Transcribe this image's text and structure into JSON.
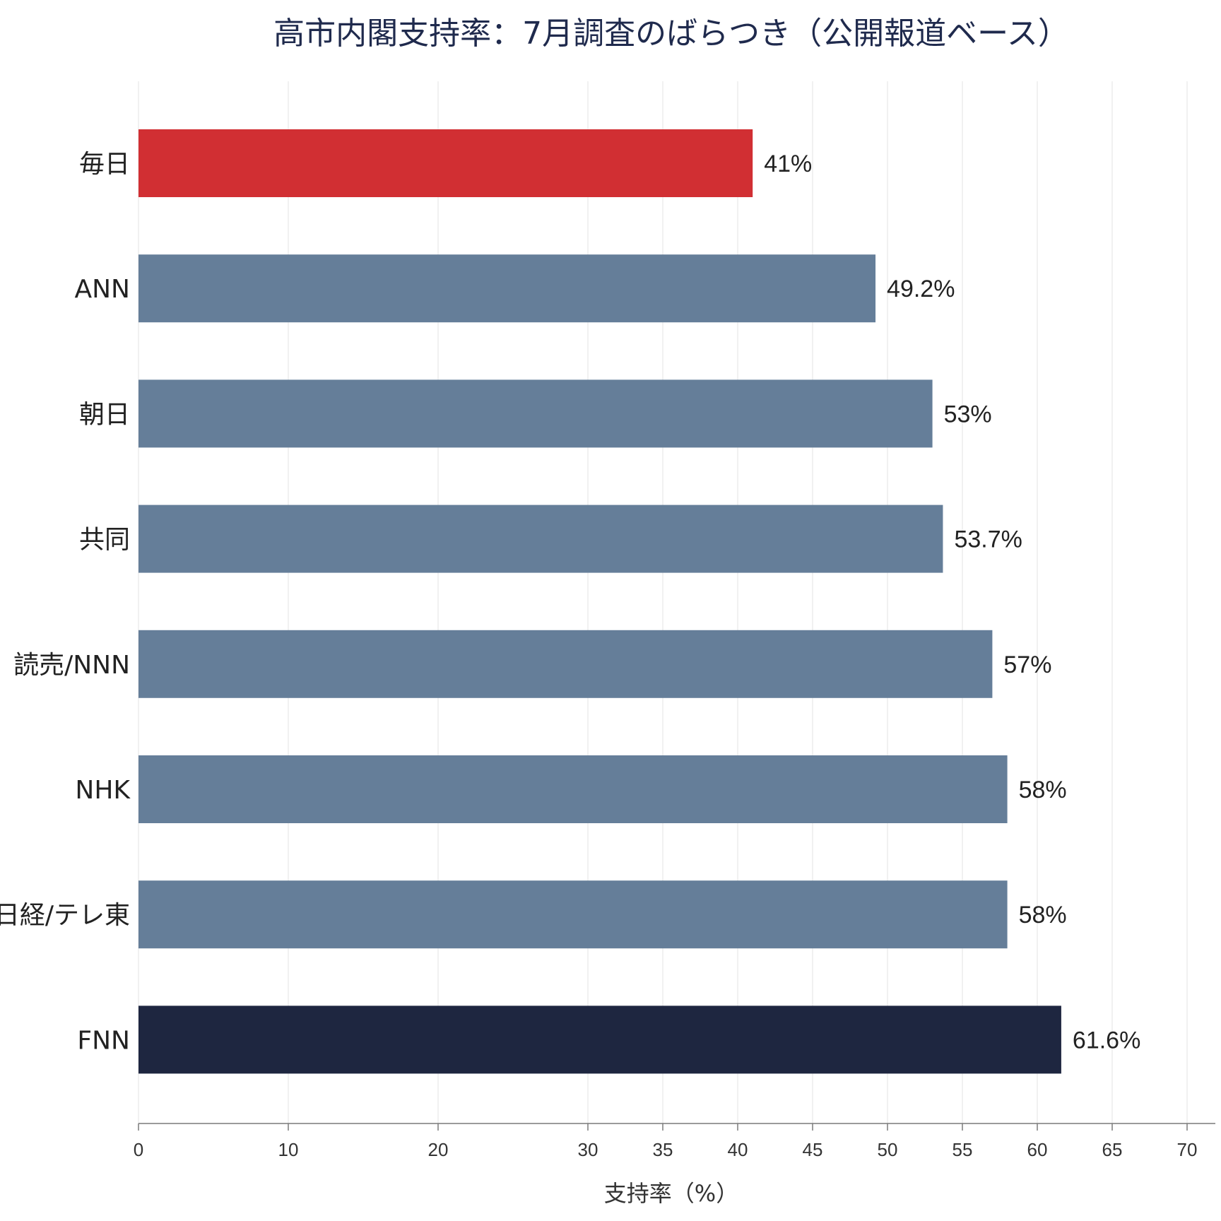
{
  "chart_data": {
    "type": "bar",
    "orientation": "horizontal",
    "title": "高市内閣支持率：7月調査のばらつき（公開報道ベース）",
    "xlabel": "支持率（%）",
    "ylabel": "",
    "xlim": [
      0,
      70
    ],
    "x_ticks": [
      0,
      10,
      20,
      30,
      35,
      40,
      45,
      50,
      55,
      60,
      65,
      70
    ],
    "grid": true,
    "categories": [
      "毎日",
      "ANN",
      "朝日",
      "共同",
      "読売/NNN",
      "NHK",
      "日経/テレ東",
      "FNN"
    ],
    "values": [
      41,
      49.2,
      53,
      53.7,
      57,
      58,
      58,
      61.6
    ],
    "value_labels": [
      "41%",
      "49.2%",
      "53%",
      "53.7%",
      "57%",
      "58%",
      "58%",
      "61.6%"
    ],
    "colors": [
      "#d12f33",
      "#657e99",
      "#657e99",
      "#657e99",
      "#657e99",
      "#657e99",
      "#657e99",
      "#1e2640"
    ]
  }
}
